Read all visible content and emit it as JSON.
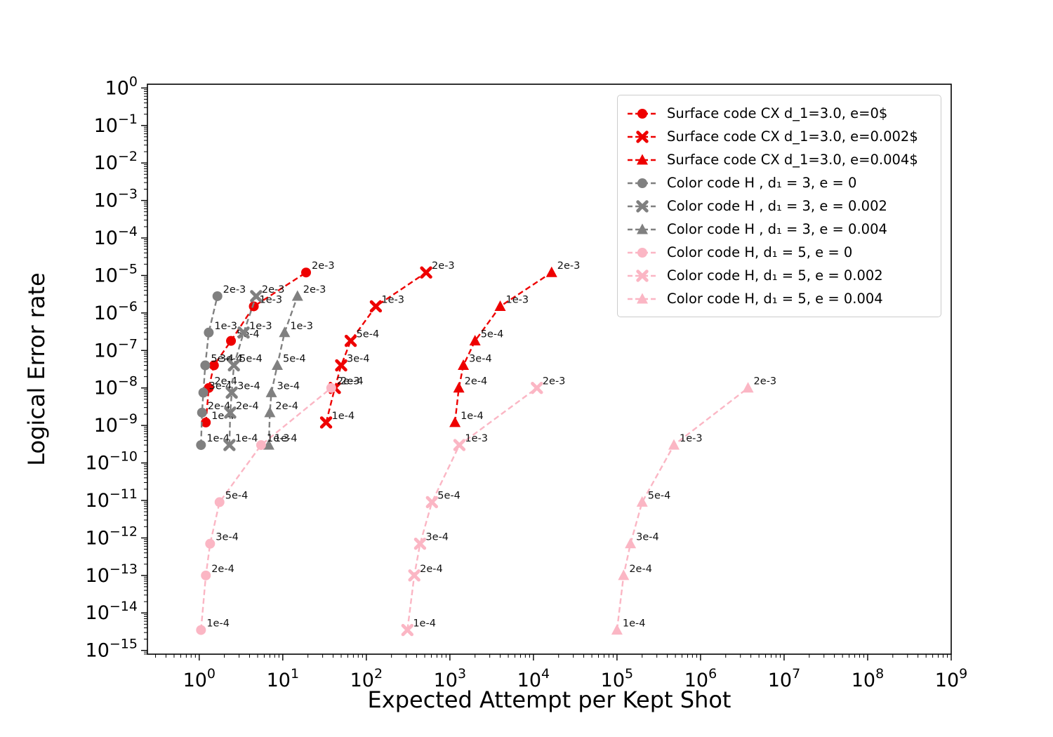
{
  "figure": {
    "background": "#ffffff"
  },
  "chart_data": {
    "type": "line",
    "title": "",
    "xlabel": "Expected Attempt per Kept Shot",
    "ylabel": "Logical Error rate",
    "grid": false,
    "legend": {
      "position": "upper right"
    },
    "x_axis": {
      "scale": "log",
      "tick_exponents": [
        0,
        1,
        2,
        3,
        4,
        5,
        6,
        7,
        8,
        9
      ],
      "range_log10": [
        -0.62,
        9.0
      ]
    },
    "y_axis": {
      "scale": "log",
      "tick_exponents": [
        0,
        -1,
        -2,
        -3,
        -4,
        -5,
        -6,
        -7,
        -8,
        -9,
        -10,
        -11,
        -12,
        -13,
        -14,
        -15
      ],
      "range_log10": [
        -15.1,
        0.1
      ]
    },
    "point_labels": [
      "1e-4",
      "2e-4",
      "3e-4",
      "5e-4",
      "1e-3",
      "2e-3"
    ],
    "colors": {
      "surface_red": "#ee0000",
      "color_code_gray": "#808080",
      "color_code_pink": "#fbb6c4"
    },
    "series": [
      {
        "name": "Surface code CX d_1=3.0, e=0$",
        "color": "#ee0000",
        "marker": "circle",
        "linestyle": "dashed",
        "x": [
          1.2,
          1.3,
          1.5,
          2.4,
          4.5,
          19
        ],
        "y": [
          1.2e-09,
          1e-08,
          4e-08,
          1.8e-07,
          1.5e-06,
          1.2e-05
        ]
      },
      {
        "name": "Surface code CX d_1=3.0, e=0.002$",
        "color": "#ee0000",
        "marker": "x",
        "linestyle": "dashed",
        "x": [
          33,
          42,
          50,
          65,
          130,
          520
        ],
        "y": [
          1.2e-09,
          1e-08,
          4e-08,
          1.8e-07,
          1.5e-06,
          1.2e-05
        ]
      },
      {
        "name": "Surface code CX d_1=3.0, e=0.004$",
        "color": "#ee0000",
        "marker": "triangle",
        "linestyle": "dashed",
        "x": [
          1150,
          1280,
          1450,
          2000,
          4000,
          16500
        ],
        "y": [
          1.2e-09,
          1e-08,
          4e-08,
          1.8e-07,
          1.5e-06,
          1.2e-05
        ]
      },
      {
        "name": "Color code H , d₁ = 3, e = 0",
        "color": "#808080",
        "marker": "circle",
        "linestyle": "dashed",
        "x": [
          1.05,
          1.08,
          1.12,
          1.18,
          1.3,
          1.65
        ],
        "y": [
          3e-10,
          2.2e-09,
          7.5e-09,
          4e-08,
          3e-07,
          2.8e-06
        ]
      },
      {
        "name": "Color code H , d₁ = 3, e = 0.002",
        "color": "#808080",
        "marker": "x",
        "linestyle": "dashed",
        "x": [
          2.3,
          2.35,
          2.45,
          2.6,
          3.4,
          4.8
        ],
        "y": [
          3e-10,
          2.2e-09,
          7.5e-09,
          4e-08,
          3e-07,
          2.8e-06
        ]
      },
      {
        "name": "Color code H , d₁ = 3, e = 0.004",
        "color": "#808080",
        "marker": "triangle",
        "linestyle": "dashed",
        "x": [
          6.8,
          7.0,
          7.3,
          8.6,
          10.5,
          15
        ],
        "y": [
          3e-10,
          2.2e-09,
          7.5e-09,
          4e-08,
          3e-07,
          2.8e-06
        ]
      },
      {
        "name": "Color code H, d₁ = 5, e = 0",
        "color": "#fbb6c4",
        "marker": "circle",
        "linestyle": "dashed",
        "x": [
          1.05,
          1.2,
          1.35,
          1.75,
          5.5,
          38
        ],
        "y": [
          3.5e-15,
          1e-13,
          7e-13,
          9e-12,
          3e-10,
          1e-08
        ]
      },
      {
        "name": "Color code H, d₁ = 5, e = 0.002",
        "color": "#fbb6c4",
        "marker": "x",
        "linestyle": "dashed",
        "x": [
          310,
          375,
          440,
          610,
          1300,
          11000
        ],
        "y": [
          3.5e-15,
          1e-13,
          7e-13,
          9e-12,
          3e-10,
          1e-08
        ]
      },
      {
        "name": "Color code H, d₁ = 5, e = 0.004",
        "color": "#fbb6c4",
        "marker": "triangle",
        "linestyle": "dashed",
        "x": [
          100000,
          120000,
          145000,
          200000,
          480000,
          3700000
        ],
        "y": [
          3.5e-15,
          1e-13,
          7e-13,
          9e-12,
          3e-10,
          1e-08
        ]
      }
    ]
  }
}
